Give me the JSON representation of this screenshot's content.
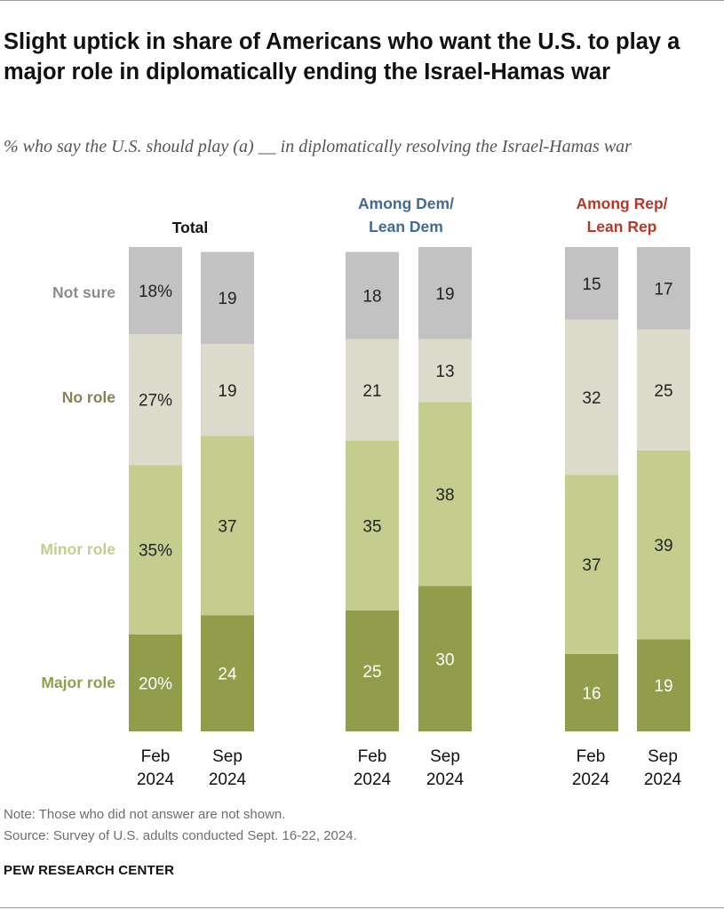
{
  "title": "Slight uptick in share of Americans who want the U.S. to play a major role in diplomatically ending the Israel-Hamas war",
  "subtitle": "% who say the U.S. should play (a) __ in diplomatically resolving the Israel-Hamas war",
  "row_labels": {
    "not_sure": "Not sure",
    "no_role": "No role",
    "minor_role": "Minor role",
    "major_role": "Major role"
  },
  "note": "Note: Those who did not answer are not shown.",
  "source": "Source: Survey of U.S. adults conducted Sept. 16-22, 2024.",
  "brand": "PEW RESEARCH CENTER",
  "colors": {
    "major_role": "#919d4a",
    "minor_role": "#c5cd8e",
    "no_role": "#dcdbcc",
    "not_sure": "#c2c2c2",
    "not_sure_label": "#8c8c8c",
    "no_role_label": "#8c7e55",
    "minor_role_label": "#c5cd8e",
    "major_role_label": "#919d4a",
    "dem": "#436a8f",
    "rep": "#b33a2b"
  },
  "chart_data": {
    "type": "bar",
    "stacked": true,
    "orientation": "vertical",
    "segment_order": [
      "major_role",
      "minor_role",
      "no_role",
      "not_sure"
    ],
    "panels": [
      {
        "title": [
          "Total"
        ],
        "bars": [
          {
            "label": [
              "Feb",
              "2024"
            ],
            "values": {
              "major_role": 20,
              "minor_role": 35,
              "no_role": 27,
              "not_sure": 18
            },
            "display": {
              "major_role": "20%",
              "minor_role": "35%",
              "no_role": "27%",
              "not_sure": "18%"
            }
          },
          {
            "label": [
              "Sep",
              "2024"
            ],
            "values": {
              "major_role": 24,
              "minor_role": 37,
              "no_role": 19,
              "not_sure": 19
            },
            "display": {
              "major_role": "24",
              "minor_role": "37",
              "no_role": "19",
              "not_sure": "19"
            }
          }
        ]
      },
      {
        "title": [
          "Among Dem/",
          "Lean Dem"
        ],
        "bars": [
          {
            "label": [
              "Feb",
              "2024"
            ],
            "values": {
              "major_role": 25,
              "minor_role": 35,
              "no_role": 21,
              "not_sure": 18
            },
            "display": {
              "major_role": "25",
              "minor_role": "35",
              "no_role": "21",
              "not_sure": "18"
            }
          },
          {
            "label": [
              "Sep",
              "2024"
            ],
            "values": {
              "major_role": 30,
              "minor_role": 38,
              "no_role": 13,
              "not_sure": 19
            },
            "display": {
              "major_role": "30",
              "minor_role": "38",
              "no_role": "13",
              "not_sure": "19"
            }
          }
        ]
      },
      {
        "title": [
          "Among Rep/",
          "Lean Rep"
        ],
        "bars": [
          {
            "label": [
              "Feb",
              "2024"
            ],
            "values": {
              "major_role": 16,
              "minor_role": 37,
              "no_role": 32,
              "not_sure": 15
            },
            "display": {
              "major_role": "16",
              "minor_role": "37",
              "no_role": "32",
              "not_sure": "15"
            }
          },
          {
            "label": [
              "Sep",
              "2024"
            ],
            "values": {
              "major_role": 19,
              "minor_role": 39,
              "no_role": 25,
              "not_sure": 17
            },
            "display": {
              "major_role": "19",
              "minor_role": "39",
              "no_role": "25",
              "not_sure": "17"
            }
          }
        ]
      }
    ],
    "ylim": [
      0,
      100
    ]
  }
}
